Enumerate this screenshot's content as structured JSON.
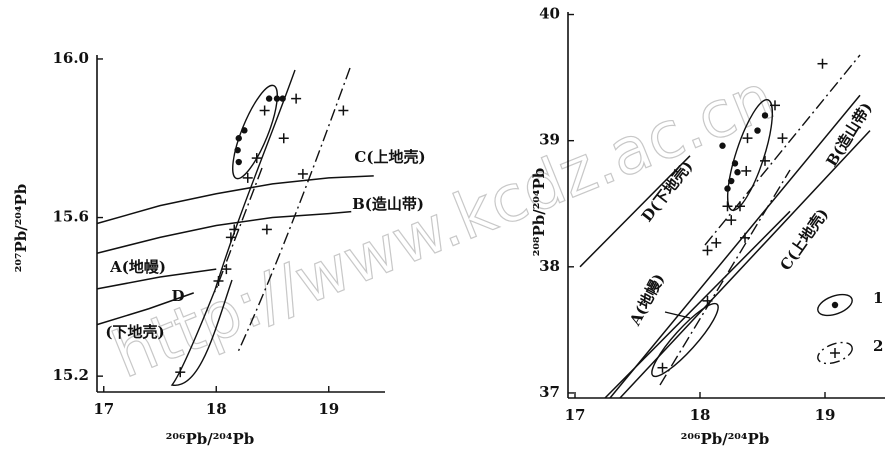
{
  "watermark": "http://www.kcdz.ac.cn",
  "chart_data": [
    {
      "type": "scatter",
      "xlabel": "²⁰⁶Pb/²⁰⁴Pb",
      "ylabel": "²⁰⁷Pb/²⁰⁴Pb",
      "xlim": [
        16.94,
        19.5
      ],
      "ylim": [
        15.16,
        16.01
      ],
      "xticks": [
        17,
        18,
        19
      ],
      "yticks": [
        15.2,
        15.6,
        {
          "value": 16,
          "label": "16.0"
        }
      ],
      "series": [
        {
          "marker": "dot",
          "color": "#111",
          "x": [
            18.2,
            18.25,
            18.19,
            18.2,
            18.47,
            18.54,
            18.59
          ],
          "values": [
            15.8,
            15.82,
            15.77,
            15.74,
            15.9,
            15.9,
            15.9
          ]
        },
        {
          "marker": "cross",
          "color": "#111",
          "x": [
            18.43,
            18.71,
            18.6,
            18.36,
            18.28,
            18.77,
            19.13,
            18.16,
            18.13,
            18.45,
            18.09,
            18.02,
            17.68
          ],
          "values": [
            15.87,
            15.9,
            15.8,
            15.75,
            15.7,
            15.71,
            15.87,
            15.57,
            15.55,
            15.57,
            15.47,
            15.44,
            15.21
          ]
        }
      ],
      "curves": [
        {
          "label": "C(上地壳)",
          "x": [
            16.94,
            17.5,
            18,
            18.5,
            19,
            19.4
          ],
          "values": [
            15.585,
            15.63,
            15.66,
            15.685,
            15.7,
            15.705
          ]
        },
        {
          "label": "B(造山带)",
          "x": [
            16.94,
            17.5,
            18,
            18.5,
            19,
            19.2
          ],
          "values": [
            15.51,
            15.55,
            15.58,
            15.6,
            15.61,
            15.615
          ]
        },
        {
          "label": "A(地幔)",
          "x": [
            16.94,
            17.5,
            18
          ],
          "values": [
            15.42,
            15.45,
            15.47
          ]
        },
        {
          "label": "D",
          "x": [
            16.94,
            17.4,
            17.8
          ],
          "values": [
            15.33,
            15.37,
            15.41
          ]
        }
      ],
      "annotations": [
        "(下地壳)"
      ]
    },
    {
      "type": "scatter",
      "xlabel": "²⁰⁶Pb/²⁰⁴Pb",
      "ylabel": "²⁰⁸Pb/²⁰⁴Pb",
      "xlim": [
        16.944,
        19.48
      ],
      "ylim": [
        36.96,
        40.02
      ],
      "xticks": [
        17,
        18,
        19
      ],
      "yticks": [
        37,
        38,
        39,
        40
      ],
      "legend": "lower right",
      "series": [
        {
          "name": "1",
          "marker": "dot",
          "color": "#111",
          "x": [
            18.46,
            18.52,
            18.18,
            18.28,
            18.3,
            18.25,
            18.22
          ],
          "values": [
            39.08,
            39.2,
            38.96,
            38.82,
            38.75,
            38.68,
            38.62
          ]
        },
        {
          "name": "2",
          "marker": "cross",
          "color": "#111",
          "x": [
            18.6,
            18.38,
            18.66,
            18.52,
            18.37,
            18.22,
            18.32,
            18.25,
            18.36,
            18.13,
            18.06,
            18.98,
            18.06,
            17.7
          ],
          "values": [
            39.28,
            39.02,
            39.02,
            38.84,
            38.76,
            38.48,
            38.48,
            38.37,
            38.23,
            38.19,
            38.13,
            39.61,
            37.73,
            37.2
          ]
        }
      ],
      "curves": [
        {
          "label": "D(下地壳)",
          "x": [
            17.04,
            17.92
          ],
          "values": [
            38.0,
            38.88
          ]
        },
        {
          "label": "B(造山带)",
          "x": [
            17.28,
            19.28
          ],
          "values": [
            36.96,
            39.36
          ]
        },
        {
          "label": "C(上地壳)",
          "x": [
            17.36,
            19.36
          ],
          "values": [
            36.96,
            39.08
          ]
        },
        {
          "label": "A(地幔)",
          "x": [
            17.24,
            18.72
          ],
          "values": [
            36.96,
            38.44
          ]
        }
      ]
    }
  ]
}
